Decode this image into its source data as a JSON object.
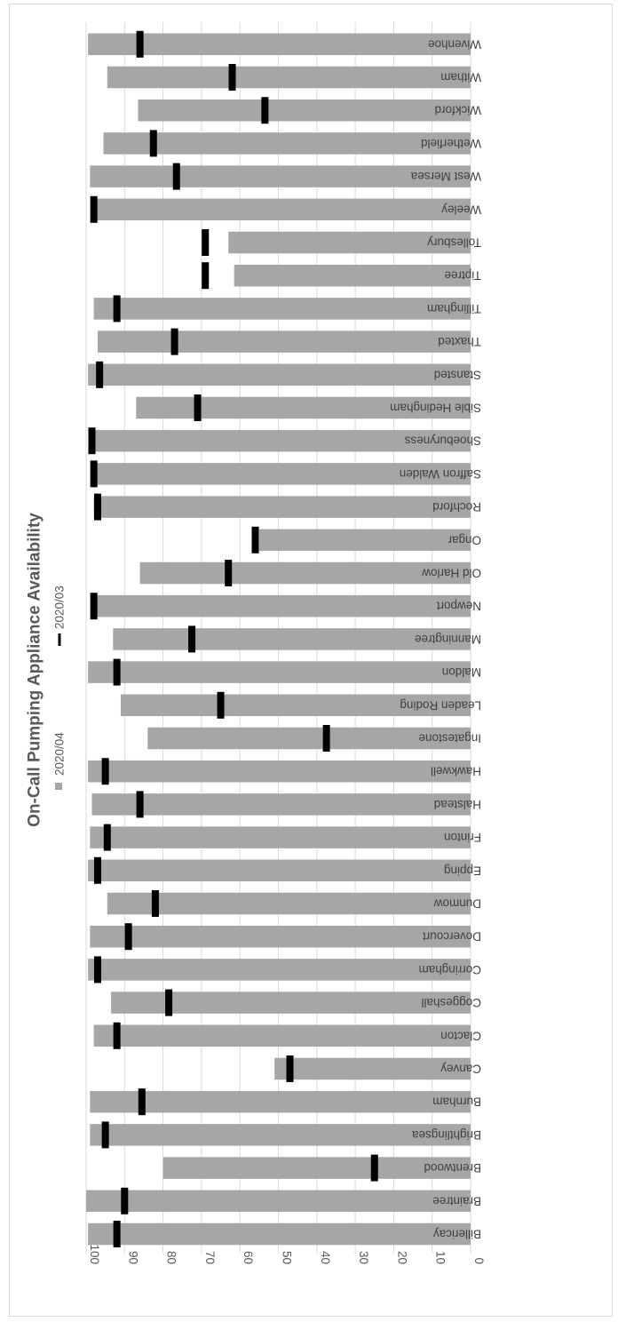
{
  "chart_data": {
    "type": "bar",
    "orientation": "horizontal",
    "title": "On-Call Pumping Appliance Availability",
    "xlim": [
      0,
      100
    ],
    "ticks": [
      0,
      10,
      20,
      30,
      40,
      50,
      60,
      70,
      80,
      90,
      100
    ],
    "grid": true,
    "legend_position": "top",
    "colors": {
      "bar": "#a6a6a6",
      "marker": "#000000",
      "grid": "#d9d9d9",
      "title": "#595959"
    },
    "categories": [
      "Billericay",
      "Braintree",
      "Brentwood",
      "Brightlingsea",
      "Burnham",
      "Canvey",
      "Clacton",
      "Coggeshall",
      "Corringham",
      "Dovercourt",
      "Dunmow",
      "Epping",
      "Frinton",
      "Halstead",
      "Hawkwell",
      "Ingatestone",
      "Leaden Roding",
      "Maldon",
      "Manningtree",
      "Newport",
      "Old Harlow",
      "Ongar",
      "Rochford",
      "Saffron Walden",
      "Shoeburyness",
      "Sible Hedingham",
      "Stansted",
      "Thaxted",
      "Tillingham",
      "Tiptree",
      "Tollesbury",
      "Weeley",
      "West Mersea",
      "Wetherfield",
      "Wickford",
      "Witham",
      "Wivenhoe"
    ],
    "series": [
      {
        "name": "2020/04",
        "kind": "bar",
        "values": [
          99.5,
          100,
          80,
          99,
          99,
          51,
          98,
          93.5,
          99.5,
          99,
          94.5,
          99.5,
          99,
          98.5,
          99.5,
          84,
          91,
          99.5,
          93,
          98,
          86,
          55,
          98,
          98.5,
          98.5,
          87,
          99.5,
          97,
          98,
          61.5,
          63,
          98,
          99,
          95.5,
          86.5,
          94.5,
          99.5
        ]
      },
      {
        "name": "2020/03",
        "kind": "marker",
        "values": [
          92,
          90,
          25,
          95,
          85.5,
          47,
          92,
          78.5,
          97,
          89,
          82,
          97,
          94.5,
          86,
          95,
          37.5,
          65,
          92,
          72.5,
          98,
          63,
          56,
          97,
          98,
          98.5,
          71,
          96.5,
          77,
          92,
          69,
          69,
          98,
          76.5,
          82.5,
          53.5,
          62,
          86
        ]
      }
    ]
  }
}
